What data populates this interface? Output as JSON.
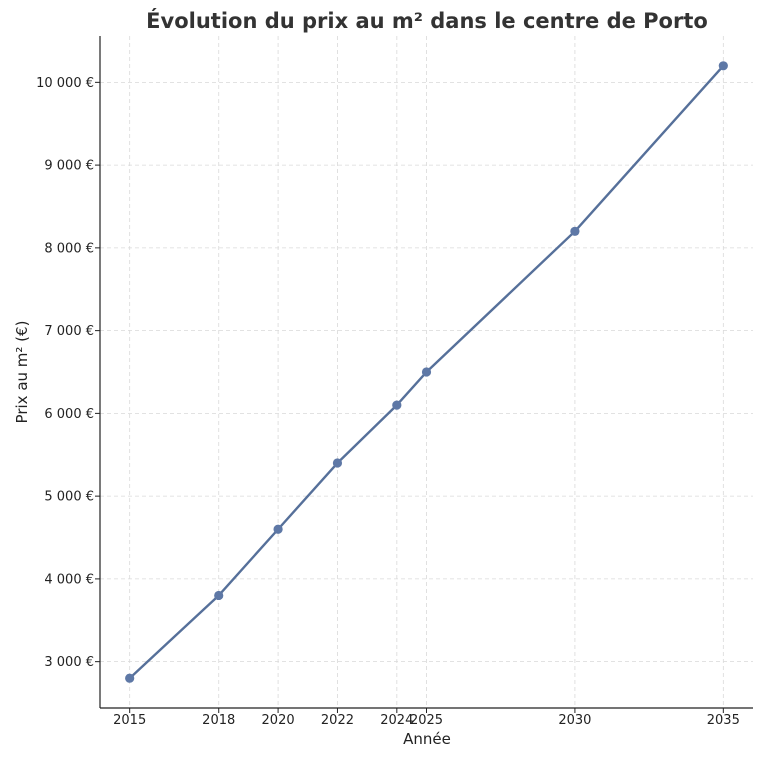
{
  "chart_data": {
    "type": "line",
    "title": "Évolution du prix au m² dans le centre de Porto",
    "xlabel": "Année",
    "ylabel": "Prix au m² (€)",
    "x": [
      2015,
      2018,
      2020,
      2022,
      2024,
      2025,
      2030,
      2035
    ],
    "x_tick_labels": [
      "2015",
      "2018",
      "2020",
      "2022",
      "2024",
      "2025",
      "2030",
      "2035"
    ],
    "y_ticks": [
      3000,
      4000,
      5000,
      6000,
      7000,
      8000,
      9000,
      10000
    ],
    "y_tick_labels": [
      "3 000 €",
      "4 000 €",
      "5 000 €",
      "6 000 €",
      "7 000 €",
      "8 000 €",
      "9 000 €",
      "10 000 €"
    ],
    "series": [
      {
        "values": [
          2800,
          3800,
          4600,
          5400,
          6100,
          6500,
          8200,
          10200
        ]
      }
    ],
    "xlim": [
      2014.0,
      2036.0
    ],
    "ylim": [
      2440,
      10560
    ],
    "grid": true,
    "line_color": "#56709a",
    "marker_color": "#5e78a6"
  }
}
